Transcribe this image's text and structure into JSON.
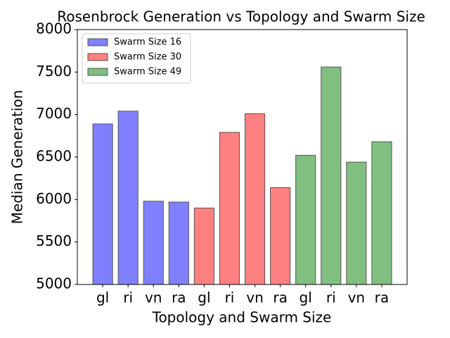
{
  "chart_data": {
    "type": "bar",
    "title": "Rosenbrock Generation vs Topology and Swarm Size",
    "x_label": "Topology and Swarm Size",
    "y_label": "Median Generation",
    "categories": [
      "gl",
      "ri",
      "vn",
      "ra",
      "gl",
      "ri",
      "vn",
      "ra",
      "gl",
      "ri",
      "vn",
      "ra"
    ],
    "series": [
      {
        "name": "Swarm Size 16",
        "color": "#8080ff",
        "values": [
          6890,
          7040,
          5980,
          5970,
          null,
          null,
          null,
          null,
          null,
          null,
          null,
          null
        ]
      },
      {
        "name": "Swarm Size 30",
        "color": "#ff8080",
        "values": [
          null,
          null,
          null,
          null,
          5900,
          6790,
          7010,
          6140,
          null,
          null,
          null,
          null
        ]
      },
      {
        "name": "Swarm Size 49",
        "color": "#80bf80",
        "values": [
          null,
          null,
          null,
          null,
          null,
          null,
          null,
          null,
          6520,
          7560,
          6440,
          6680
        ]
      }
    ],
    "ylim": [
      5000,
      8000
    ],
    "yticks": [
      5000,
      5500,
      6000,
      6500,
      7000,
      7500,
      8000
    ],
    "grid": false,
    "legend": "upper left"
  }
}
